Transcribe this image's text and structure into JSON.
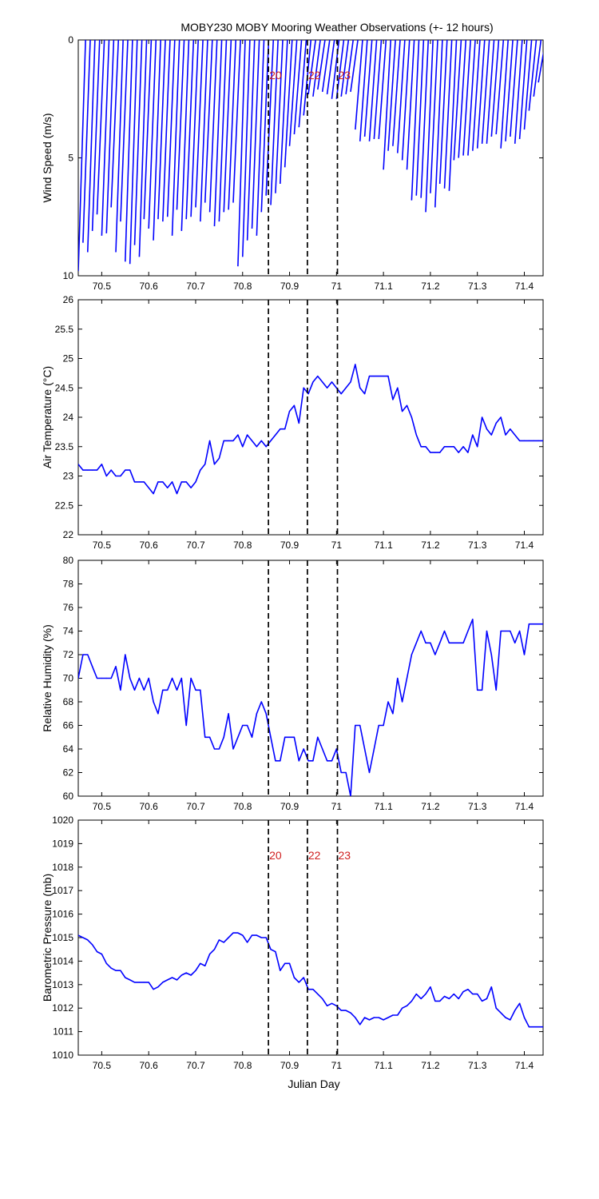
{
  "chart_data": {
    "title": "MOBY230 MOBY Mooring Weather Observations (+- 12 hours)",
    "xlabel": "Julian Day",
    "xlim": [
      70.45,
      71.44
    ],
    "xticks": [
      "70.5",
      "70.6",
      "70.7",
      "70.8",
      "70.9",
      "71",
      "71.1",
      "71.2",
      "71.3",
      "71.4"
    ],
    "line_color": "#0000ff",
    "event_lines": [
      {
        "x": 70.855,
        "label": "20"
      },
      {
        "x": 70.938,
        "label": "22"
      },
      {
        "x": 71.002,
        "label": "23"
      }
    ],
    "panels": [
      {
        "type": "wind-stick",
        "ylabel": "Wind Speed (m/s)",
        "ylim": [
          0,
          10
        ],
        "y_inverted": true,
        "yticks": [
          "0",
          "5",
          "10"
        ],
        "show_event_labels": true,
        "sticks": [
          [
            70.45,
            9.8
          ],
          [
            70.46,
            8.6
          ],
          [
            70.47,
            9.0
          ],
          [
            70.48,
            8.1
          ],
          [
            70.49,
            7.4
          ],
          [
            70.5,
            8.3
          ],
          [
            70.51,
            8.2
          ],
          [
            70.52,
            7.1
          ],
          [
            70.53,
            9.0
          ],
          [
            70.54,
            7.7
          ],
          [
            70.55,
            9.4
          ],
          [
            70.56,
            9.5
          ],
          [
            70.57,
            8.7
          ],
          [
            70.58,
            9.2
          ],
          [
            70.59,
            7.6
          ],
          [
            70.6,
            8.0
          ],
          [
            70.61,
            8.5
          ],
          [
            70.62,
            7.6
          ],
          [
            70.63,
            7.7
          ],
          [
            70.64,
            7.5
          ],
          [
            70.65,
            8.3
          ],
          [
            70.66,
            7.2
          ],
          [
            70.67,
            8.1
          ],
          [
            70.68,
            7.6
          ],
          [
            70.69,
            7.5
          ],
          [
            70.7,
            7.1
          ],
          [
            70.71,
            7.7
          ],
          [
            70.72,
            6.9
          ],
          [
            70.73,
            7.3
          ],
          [
            70.74,
            7.9
          ],
          [
            70.75,
            7.7
          ],
          [
            70.76,
            7.3
          ],
          [
            70.77,
            7.2
          ],
          [
            70.78,
            6.9
          ],
          [
            70.79,
            9.6
          ],
          [
            70.8,
            9.2
          ],
          [
            70.81,
            8.5
          ],
          [
            70.82,
            8.0
          ],
          [
            70.83,
            8.3
          ],
          [
            70.84,
            7.3
          ],
          [
            70.85,
            6.6
          ],
          [
            70.86,
            7.0
          ],
          [
            70.87,
            6.5
          ],
          [
            70.88,
            6.1
          ],
          [
            70.89,
            5.4
          ],
          [
            70.9,
            4.5
          ],
          [
            70.91,
            4.0
          ],
          [
            70.92,
            3.7
          ],
          [
            70.93,
            3.2
          ],
          [
            70.94,
            2.3
          ],
          [
            70.95,
            2.4
          ],
          [
            70.96,
            2.1
          ],
          [
            70.97,
            2.2
          ],
          [
            70.98,
            2.3
          ],
          [
            70.99,
            2.5
          ],
          [
            71.0,
            2.5
          ],
          [
            71.01,
            2.4
          ],
          [
            71.02,
            2.3
          ],
          [
            71.03,
            2.2
          ],
          [
            71.04,
            3.8
          ],
          [
            71.05,
            4.3
          ],
          [
            71.06,
            4.1
          ],
          [
            71.07,
            4.3
          ],
          [
            71.08,
            4.2
          ],
          [
            71.09,
            4.2
          ],
          [
            71.1,
            5.5
          ],
          [
            71.11,
            4.7
          ],
          [
            71.12,
            4.5
          ],
          [
            71.13,
            4.8
          ],
          [
            71.14,
            5.1
          ],
          [
            71.15,
            5.5
          ],
          [
            71.16,
            6.8
          ],
          [
            71.17,
            6.6
          ],
          [
            71.18,
            6.7
          ],
          [
            71.19,
            7.3
          ],
          [
            71.2,
            6.5
          ],
          [
            71.21,
            7.1
          ],
          [
            71.22,
            6.1
          ],
          [
            71.23,
            6.3
          ],
          [
            71.24,
            6.4
          ],
          [
            71.25,
            5.1
          ],
          [
            71.26,
            5.0
          ],
          [
            71.27,
            4.9
          ],
          [
            71.28,
            4.9
          ],
          [
            71.29,
            4.7
          ],
          [
            71.3,
            4.6
          ],
          [
            71.31,
            4.4
          ],
          [
            71.32,
            4.4
          ],
          [
            71.33,
            4.1
          ],
          [
            71.34,
            4.0
          ],
          [
            71.35,
            4.6
          ],
          [
            71.36,
            4.3
          ],
          [
            71.37,
            4.1
          ],
          [
            71.38,
            4.4
          ],
          [
            71.39,
            4.2
          ],
          [
            71.4,
            3.8
          ],
          [
            71.41,
            3.0
          ],
          [
            71.42,
            2.4
          ],
          [
            71.43,
            1.8
          ]
        ]
      },
      {
        "type": "line",
        "ylabel": "Air Temperature (°C)",
        "ylim": [
          22,
          26
        ],
        "yticks": [
          "22",
          "22.5",
          "23",
          "23.5",
          "24",
          "24.5",
          "25",
          "25.5",
          "26"
        ],
        "x": [
          70.45,
          70.46,
          70.47,
          70.48,
          70.49,
          70.5,
          70.51,
          70.52,
          70.53,
          70.54,
          70.55,
          70.56,
          70.57,
          70.58,
          70.59,
          70.6,
          70.61,
          70.62,
          70.63,
          70.64,
          70.65,
          70.66,
          70.67,
          70.68,
          70.69,
          70.7,
          70.71,
          70.72,
          70.73,
          70.74,
          70.75,
          70.76,
          70.77,
          70.78,
          70.79,
          70.8,
          70.81,
          70.82,
          70.83,
          70.84,
          70.85,
          70.86,
          70.87,
          70.88,
          70.89,
          70.9,
          70.91,
          70.92,
          70.93,
          70.94,
          70.95,
          70.96,
          70.97,
          70.98,
          70.99,
          71.0,
          71.01,
          71.02,
          71.03,
          71.04,
          71.05,
          71.06,
          71.07,
          71.08,
          71.09,
          71.1,
          71.11,
          71.12,
          71.13,
          71.14,
          71.15,
          71.16,
          71.17,
          71.18,
          71.19,
          71.2,
          71.21,
          71.22,
          71.23,
          71.24,
          71.25,
          71.26,
          71.27,
          71.28,
          71.29,
          71.3,
          71.31,
          71.32,
          71.33,
          71.34,
          71.35,
          71.36,
          71.37,
          71.38,
          71.39,
          71.4,
          71.41,
          71.42,
          71.43,
          71.44
        ],
        "y": [
          23.2,
          23.1,
          23.1,
          23.1,
          23.1,
          23.2,
          23.0,
          23.1,
          23.0,
          23.0,
          23.1,
          23.1,
          22.9,
          22.9,
          22.9,
          22.8,
          22.7,
          22.9,
          22.9,
          22.8,
          22.9,
          22.7,
          22.9,
          22.9,
          22.8,
          22.9,
          23.1,
          23.2,
          23.6,
          23.2,
          23.3,
          23.6,
          23.6,
          23.6,
          23.7,
          23.5,
          23.7,
          23.6,
          23.5,
          23.6,
          23.5,
          23.6,
          23.7,
          23.8,
          23.8,
          24.1,
          24.2,
          23.9,
          24.5,
          24.4,
          24.6,
          24.7,
          24.6,
          24.5,
          24.6,
          24.5,
          24.4,
          24.5,
          24.6,
          24.9,
          24.5,
          24.4,
          24.7,
          24.7,
          24.7,
          24.7,
          24.7,
          24.3,
          24.5,
          24.1,
          24.2,
          24.0,
          23.7,
          23.5,
          23.5,
          23.4,
          23.4,
          23.4,
          23.5,
          23.5,
          23.5,
          23.4,
          23.5,
          23.4,
          23.7,
          23.5,
          24.0,
          23.8,
          23.7,
          23.9,
          24.0,
          23.7,
          23.8,
          23.7,
          23.6,
          23.6,
          23.6,
          23.6,
          23.6,
          23.6
        ]
      },
      {
        "type": "line",
        "ylabel": "Relative Humidity (%)",
        "ylim": [
          60,
          80
        ],
        "yticks": [
          "60",
          "62",
          "64",
          "66",
          "68",
          "70",
          "72",
          "74",
          "76",
          "78",
          "80"
        ],
        "x": [
          70.45,
          70.46,
          70.47,
          70.48,
          70.49,
          70.5,
          70.51,
          70.52,
          70.53,
          70.54,
          70.55,
          70.56,
          70.57,
          70.58,
          70.59,
          70.6,
          70.61,
          70.62,
          70.63,
          70.64,
          70.65,
          70.66,
          70.67,
          70.68,
          70.69,
          70.7,
          70.71,
          70.72,
          70.73,
          70.74,
          70.75,
          70.76,
          70.77,
          70.78,
          70.79,
          70.8,
          70.81,
          70.82,
          70.83,
          70.84,
          70.85,
          70.86,
          70.87,
          70.88,
          70.89,
          70.9,
          70.91,
          70.92,
          70.93,
          70.94,
          70.95,
          70.96,
          70.97,
          70.98,
          70.99,
          71.0,
          71.01,
          71.02,
          71.03,
          71.04,
          71.05,
          71.06,
          71.07,
          71.08,
          71.09,
          71.1,
          71.11,
          71.12,
          71.13,
          71.14,
          71.15,
          71.16,
          71.17,
          71.18,
          71.19,
          71.2,
          71.21,
          71.22,
          71.23,
          71.24,
          71.25,
          71.26,
          71.27,
          71.28,
          71.29,
          71.3,
          71.31,
          71.32,
          71.33,
          71.34,
          71.35,
          71.36,
          71.37,
          71.38,
          71.39,
          71.4,
          71.41,
          71.42,
          71.43,
          71.44
        ],
        "y": [
          70,
          72,
          72,
          71,
          70,
          70,
          70,
          70,
          71,
          69,
          72,
          70,
          69,
          70,
          69,
          70,
          68,
          67,
          69,
          69,
          70,
          69,
          70,
          66,
          70,
          69,
          69,
          65,
          65,
          64,
          64,
          65,
          67,
          64,
          65,
          66,
          66,
          65,
          67,
          68,
          67,
          65,
          63,
          63,
          65,
          65,
          65,
          63,
          64,
          63,
          63,
          65,
          64,
          63,
          63,
          64,
          62,
          62,
          60,
          66,
          66,
          64,
          62,
          64,
          66,
          66,
          68,
          67,
          70,
          68,
          70,
          72,
          73,
          74,
          73,
          73,
          72,
          73,
          74,
          73,
          73,
          73,
          73,
          74,
          75,
          69,
          69,
          74,
          72,
          69,
          74,
          74,
          74,
          73,
          74,
          72,
          74.6,
          74.6,
          74.6,
          74.6
        ]
      },
      {
        "type": "line",
        "ylabel": "Barometric Pressure (mb)",
        "ylim": [
          1010,
          1020
        ],
        "yticks": [
          "1010",
          "1011",
          "1012",
          "1013",
          "1014",
          "1015",
          "1016",
          "1017",
          "1018",
          "1019",
          "1020"
        ],
        "show_event_labels": true,
        "x": [
          70.45,
          70.46,
          70.47,
          70.48,
          70.49,
          70.5,
          70.51,
          70.52,
          70.53,
          70.54,
          70.55,
          70.56,
          70.57,
          70.58,
          70.59,
          70.6,
          70.61,
          70.62,
          70.63,
          70.64,
          70.65,
          70.66,
          70.67,
          70.68,
          70.69,
          70.7,
          70.71,
          70.72,
          70.73,
          70.74,
          70.75,
          70.76,
          70.77,
          70.78,
          70.79,
          70.8,
          70.81,
          70.82,
          70.83,
          70.84,
          70.85,
          70.86,
          70.87,
          70.88,
          70.89,
          70.9,
          70.91,
          70.92,
          70.93,
          70.94,
          70.95,
          70.96,
          70.97,
          70.98,
          70.99,
          71.0,
          71.01,
          71.02,
          71.03,
          71.04,
          71.05,
          71.06,
          71.07,
          71.08,
          71.09,
          71.1,
          71.11,
          71.12,
          71.13,
          71.14,
          71.15,
          71.16,
          71.17,
          71.18,
          71.19,
          71.2,
          71.21,
          71.22,
          71.23,
          71.24,
          71.25,
          71.26,
          71.27,
          71.28,
          71.29,
          71.3,
          71.31,
          71.32,
          71.33,
          71.34,
          71.35,
          71.36,
          71.37,
          71.38,
          71.39,
          71.4,
          71.41,
          71.42,
          71.43,
          71.44
        ],
        "y": [
          1015.1,
          1015.0,
          1014.9,
          1014.7,
          1014.4,
          1014.3,
          1013.9,
          1013.7,
          1013.6,
          1013.6,
          1013.3,
          1013.2,
          1013.1,
          1013.1,
          1013.1,
          1013.1,
          1012.8,
          1012.9,
          1013.1,
          1013.2,
          1013.3,
          1013.2,
          1013.4,
          1013.5,
          1013.4,
          1013.6,
          1013.9,
          1013.8,
          1014.3,
          1014.5,
          1014.9,
          1014.8,
          1015.0,
          1015.2,
          1015.2,
          1015.1,
          1014.8,
          1015.1,
          1015.1,
          1015.0,
          1015.0,
          1014.5,
          1014.4,
          1013.6,
          1013.9,
          1013.9,
          1013.3,
          1013.1,
          1013.3,
          1012.8,
          1012.8,
          1012.6,
          1012.4,
          1012.1,
          1012.2,
          1012.1,
          1011.9,
          1011.9,
          1011.8,
          1011.6,
          1011.3,
          1011.6,
          1011.5,
          1011.6,
          1011.6,
          1011.5,
          1011.6,
          1011.7,
          1011.7,
          1012.0,
          1012.1,
          1012.3,
          1012.6,
          1012.4,
          1012.6,
          1012.9,
          1012.3,
          1012.3,
          1012.5,
          1012.4,
          1012.6,
          1012.4,
          1012.7,
          1012.8,
          1012.6,
          1012.6,
          1012.3,
          1012.4,
          1012.9,
          1012.0,
          1011.8,
          1011.6,
          1011.5,
          1011.9,
          1012.2,
          1011.6,
          1011.2,
          1011.2,
          1011.2,
          1011.2
        ]
      }
    ]
  }
}
